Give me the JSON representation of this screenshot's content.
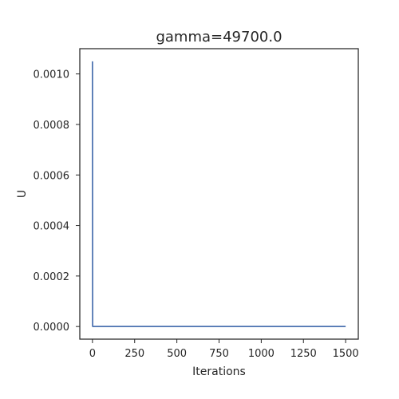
{
  "chart_data": {
    "type": "line",
    "title": "gamma=49700.0",
    "xlabel": "Iterations",
    "ylabel": "U",
    "xlim": [
      -75,
      1575
    ],
    "ylim": [
      -5e-05,
      0.0011
    ],
    "x_ticks": [
      0,
      250,
      500,
      750,
      1000,
      1250,
      1500
    ],
    "x_tick_labels": [
      "0",
      "250",
      "500",
      "750",
      "1000",
      "1250",
      "1500"
    ],
    "y_ticks": [
      0.0,
      0.0002,
      0.0004,
      0.0006,
      0.0008,
      0.001
    ],
    "y_tick_labels": [
      "0.0000",
      "0.0002",
      "0.0004",
      "0.0006",
      "0.0008",
      "0.0010"
    ],
    "grid": false,
    "series": [
      {
        "color": "#4c72b0",
        "x": [
          0,
          1,
          2,
          3,
          5,
          10,
          50,
          100,
          250,
          500,
          750,
          1000,
          1250,
          1500
        ],
        "y": [
          0.00105,
          1e-06,
          2e-07,
          0.0,
          0.0,
          0.0,
          0.0,
          0.0,
          0.0,
          0.0,
          0.0,
          0.0,
          0.0,
          0.0
        ]
      }
    ]
  }
}
